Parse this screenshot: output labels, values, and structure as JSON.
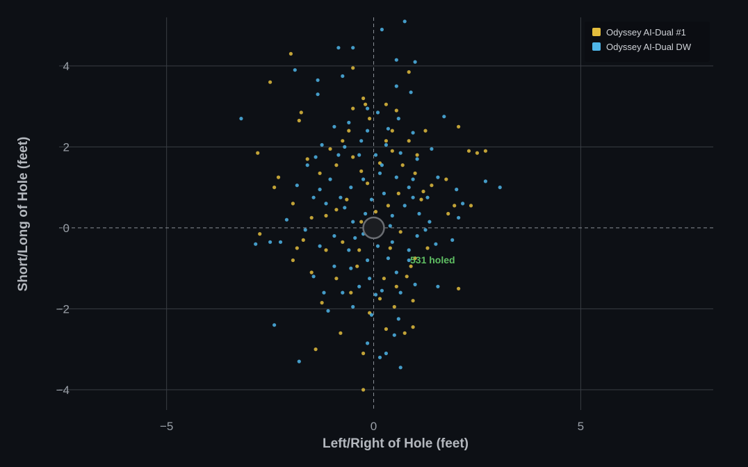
{
  "chart_data": {
    "type": "scatter",
    "xlabel": "Left/Right of Hole (feet)",
    "ylabel": "Short/Long of Hole (feet)",
    "xlim": [
      -8.1,
      8.2
    ],
    "ylim": [
      -4.5,
      5.2
    ],
    "x_ticks": [
      -5,
      0,
      5
    ],
    "y_ticks": [
      -4,
      -2,
      0,
      2,
      4
    ],
    "grid": true,
    "legend_position": "top-right",
    "annotation": "531 holed",
    "colors": {
      "background": "#0d1015",
      "grid": "#3a3e45",
      "annotation": "#5fbf63",
      "hole": "#1b1d21"
    },
    "series": [
      {
        "name": "Odyssey AI-Dual #1",
        "color": "#e3bd3d",
        "points": [
          [
            -2.0,
            4.3
          ],
          [
            -2.5,
            3.6
          ],
          [
            -1.75,
            2.85
          ],
          [
            -1.8,
            2.65
          ],
          [
            -2.3,
            1.25
          ],
          [
            -2.4,
            1.0
          ],
          [
            -2.8,
            1.85
          ],
          [
            -2.75,
            -0.15
          ],
          [
            -1.95,
            -0.8
          ],
          [
            -1.85,
            -0.5
          ],
          [
            -1.5,
            -1.1
          ],
          [
            -1.25,
            -1.85
          ],
          [
            -1.4,
            -3.0
          ],
          [
            -0.8,
            -2.6
          ],
          [
            -0.25,
            -4.0
          ],
          [
            -0.25,
            -3.1
          ],
          [
            0.3,
            -2.5
          ],
          [
            0.75,
            -2.6
          ],
          [
            0.95,
            -2.45
          ],
          [
            2.05,
            -1.5
          ],
          [
            0.95,
            -1.8
          ],
          [
            2.7,
            1.9
          ],
          [
            2.5,
            1.85
          ],
          [
            2.3,
            1.9
          ],
          [
            2.05,
            2.5
          ],
          [
            1.75,
            1.2
          ],
          [
            1.95,
            0.55
          ],
          [
            2.35,
            0.55
          ],
          [
            1.8,
            0.35
          ],
          [
            0.85,
            3.85
          ],
          [
            -0.5,
            3.95
          ],
          [
            -0.25,
            3.2
          ],
          [
            -0.2,
            3.05
          ],
          [
            0.3,
            3.05
          ],
          [
            1.25,
            2.4
          ],
          [
            1.4,
            1.05
          ],
          [
            1.0,
            1.35
          ],
          [
            1.15,
            0.7
          ],
          [
            0.45,
            2.4
          ],
          [
            -0.6,
            2.4
          ],
          [
            -1.05,
            1.95
          ],
          [
            -1.3,
            1.35
          ],
          [
            -0.9,
            0.45
          ],
          [
            -1.15,
            0.3
          ],
          [
            -1.5,
            0.25
          ],
          [
            -0.75,
            -0.35
          ],
          [
            -0.4,
            -0.95
          ],
          [
            0.25,
            -1.25
          ],
          [
            0.55,
            -1.45
          ],
          [
            0.8,
            -1.2
          ],
          [
            1.0,
            -0.75
          ],
          [
            0.1,
            -0.2
          ],
          [
            -0.3,
            0.15
          ],
          [
            0.35,
            0.55
          ],
          [
            0.6,
            0.85
          ],
          [
            -0.15,
            1.1
          ],
          [
            0.15,
            1.6
          ],
          [
            0.45,
            1.9
          ],
          [
            -0.5,
            1.75
          ],
          [
            -0.9,
            1.55
          ],
          [
            0.7,
            1.55
          ],
          [
            1.2,
            0.9
          ],
          [
            0.55,
            2.9
          ],
          [
            -0.1,
            2.7
          ],
          [
            -0.75,
            2.15
          ],
          [
            -1.6,
            1.7
          ],
          [
            -1.95,
            0.6
          ],
          [
            -1.7,
            -0.3
          ],
          [
            -1.15,
            -0.55
          ],
          [
            -0.55,
            -1.6
          ],
          [
            -0.1,
            -2.1
          ],
          [
            0.5,
            -1.95
          ],
          [
            0.9,
            -0.95
          ],
          [
            1.3,
            -0.5
          ],
          [
            0.65,
            -0.1
          ],
          [
            -0.65,
            0.7
          ],
          [
            0.05,
            0.4
          ],
          [
            0.4,
            -0.5
          ],
          [
            -0.35,
            -0.55
          ],
          [
            -0.9,
            -1.25
          ],
          [
            0.15,
            -1.75
          ],
          [
            -0.5,
            2.95
          ],
          [
            0.3,
            2.15
          ],
          [
            -0.3,
            1.4
          ],
          [
            0.85,
            2.15
          ],
          [
            1.05,
            1.8
          ]
        ]
      },
      {
        "name": "Odyssey AI-Dual DW",
        "color": "#4fb5e8",
        "points": [
          [
            0.75,
            5.1
          ],
          [
            0.2,
            4.9
          ],
          [
            -0.85,
            4.45
          ],
          [
            -0.5,
            4.45
          ],
          [
            0.55,
            4.15
          ],
          [
            1.0,
            4.1
          ],
          [
            -1.9,
            3.9
          ],
          [
            -1.35,
            3.65
          ],
          [
            -0.75,
            3.75
          ],
          [
            0.55,
            3.5
          ],
          [
            0.9,
            3.35
          ],
          [
            -1.35,
            3.3
          ],
          [
            -3.2,
            2.7
          ],
          [
            1.7,
            2.75
          ],
          [
            2.7,
            1.15
          ],
          [
            3.05,
            1.0
          ],
          [
            2.0,
            0.95
          ],
          [
            2.15,
            0.6
          ],
          [
            2.05,
            0.25
          ],
          [
            1.9,
            -0.3
          ],
          [
            1.5,
            -0.4
          ],
          [
            1.55,
            -1.45
          ],
          [
            -2.5,
            -0.35
          ],
          [
            -2.25,
            -0.35
          ],
          [
            -2.85,
            -0.4
          ],
          [
            -2.4,
            -2.4
          ],
          [
            -1.8,
            -3.3
          ],
          [
            -1.45,
            -1.2
          ],
          [
            -1.1,
            -2.05
          ],
          [
            -0.15,
            -2.85
          ],
          [
            0.15,
            -3.2
          ],
          [
            0.3,
            -3.1
          ],
          [
            0.65,
            -3.45
          ],
          [
            -0.05,
            -2.15
          ],
          [
            0.5,
            -2.65
          ],
          [
            0.6,
            -2.25
          ],
          [
            1.0,
            -1.4
          ],
          [
            0.65,
            -1.6
          ],
          [
            0.2,
            -1.55
          ],
          [
            -0.35,
            -1.45
          ],
          [
            -0.75,
            -1.6
          ],
          [
            -1.2,
            -1.6
          ],
          [
            -0.95,
            -0.95
          ],
          [
            -0.6,
            -0.55
          ],
          [
            -0.15,
            -0.8
          ],
          [
            0.35,
            -0.75
          ],
          [
            0.85,
            -0.55
          ],
          [
            1.05,
            -0.2
          ],
          [
            1.35,
            0.15
          ],
          [
            1.3,
            0.75
          ],
          [
            1.55,
            1.25
          ],
          [
            1.05,
            1.7
          ],
          [
            1.4,
            1.95
          ],
          [
            0.95,
            2.35
          ],
          [
            0.6,
            2.7
          ],
          [
            0.1,
            2.85
          ],
          [
            -0.15,
            2.95
          ],
          [
            -0.6,
            2.6
          ],
          [
            -0.95,
            2.5
          ],
          [
            -1.25,
            2.05
          ],
          [
            -1.4,
            1.75
          ],
          [
            -1.6,
            1.55
          ],
          [
            -1.85,
            1.05
          ],
          [
            -1.45,
            0.75
          ],
          [
            -1.15,
            0.6
          ],
          [
            -0.8,
            0.75
          ],
          [
            -0.55,
            1.0
          ],
          [
            -0.25,
            1.2
          ],
          [
            0.15,
            1.35
          ],
          [
            0.55,
            1.25
          ],
          [
            0.85,
            1.0
          ],
          [
            0.75,
            0.55
          ],
          [
            0.45,
            0.3
          ],
          [
            0.15,
            0.05
          ],
          [
            -0.2,
            0.35
          ],
          [
            -0.5,
            0.15
          ],
          [
            -0.95,
            -0.2
          ],
          [
            -1.3,
            -0.45
          ],
          [
            -1.65,
            -0.05
          ],
          [
            -2.1,
            0.2
          ],
          [
            -0.45,
            -0.25
          ],
          [
            0.45,
            -0.35
          ],
          [
            -0.35,
            1.8
          ],
          [
            0.05,
            1.8
          ],
          [
            0.3,
            2.05
          ],
          [
            -0.7,
            2.0
          ],
          [
            -1.05,
            1.2
          ],
          [
            0.65,
            1.85
          ],
          [
            0.95,
            0.75
          ],
          [
            -0.05,
            0.7
          ],
          [
            0.25,
            0.85
          ],
          [
            -0.7,
            0.5
          ],
          [
            0.55,
            -1.1
          ],
          [
            -0.1,
            -1.25
          ],
          [
            -0.5,
            -1.95
          ],
          [
            0.05,
            -1.65
          ],
          [
            1.1,
            0.35
          ],
          [
            1.25,
            -0.05
          ],
          [
            -1.3,
            0.95
          ],
          [
            -0.3,
            2.15
          ],
          [
            0.2,
            1.55
          ],
          [
            0.4,
            0.05
          ],
          [
            -0.55,
            -1.0
          ],
          [
            0.85,
            -0.8
          ],
          [
            -0.85,
            1.8
          ],
          [
            0.95,
            1.2
          ],
          [
            -0.15,
            2.4
          ],
          [
            0.35,
            2.45
          ],
          [
            -0.25,
            -0.15
          ],
          [
            0.1,
            -0.45
          ]
        ]
      }
    ]
  }
}
